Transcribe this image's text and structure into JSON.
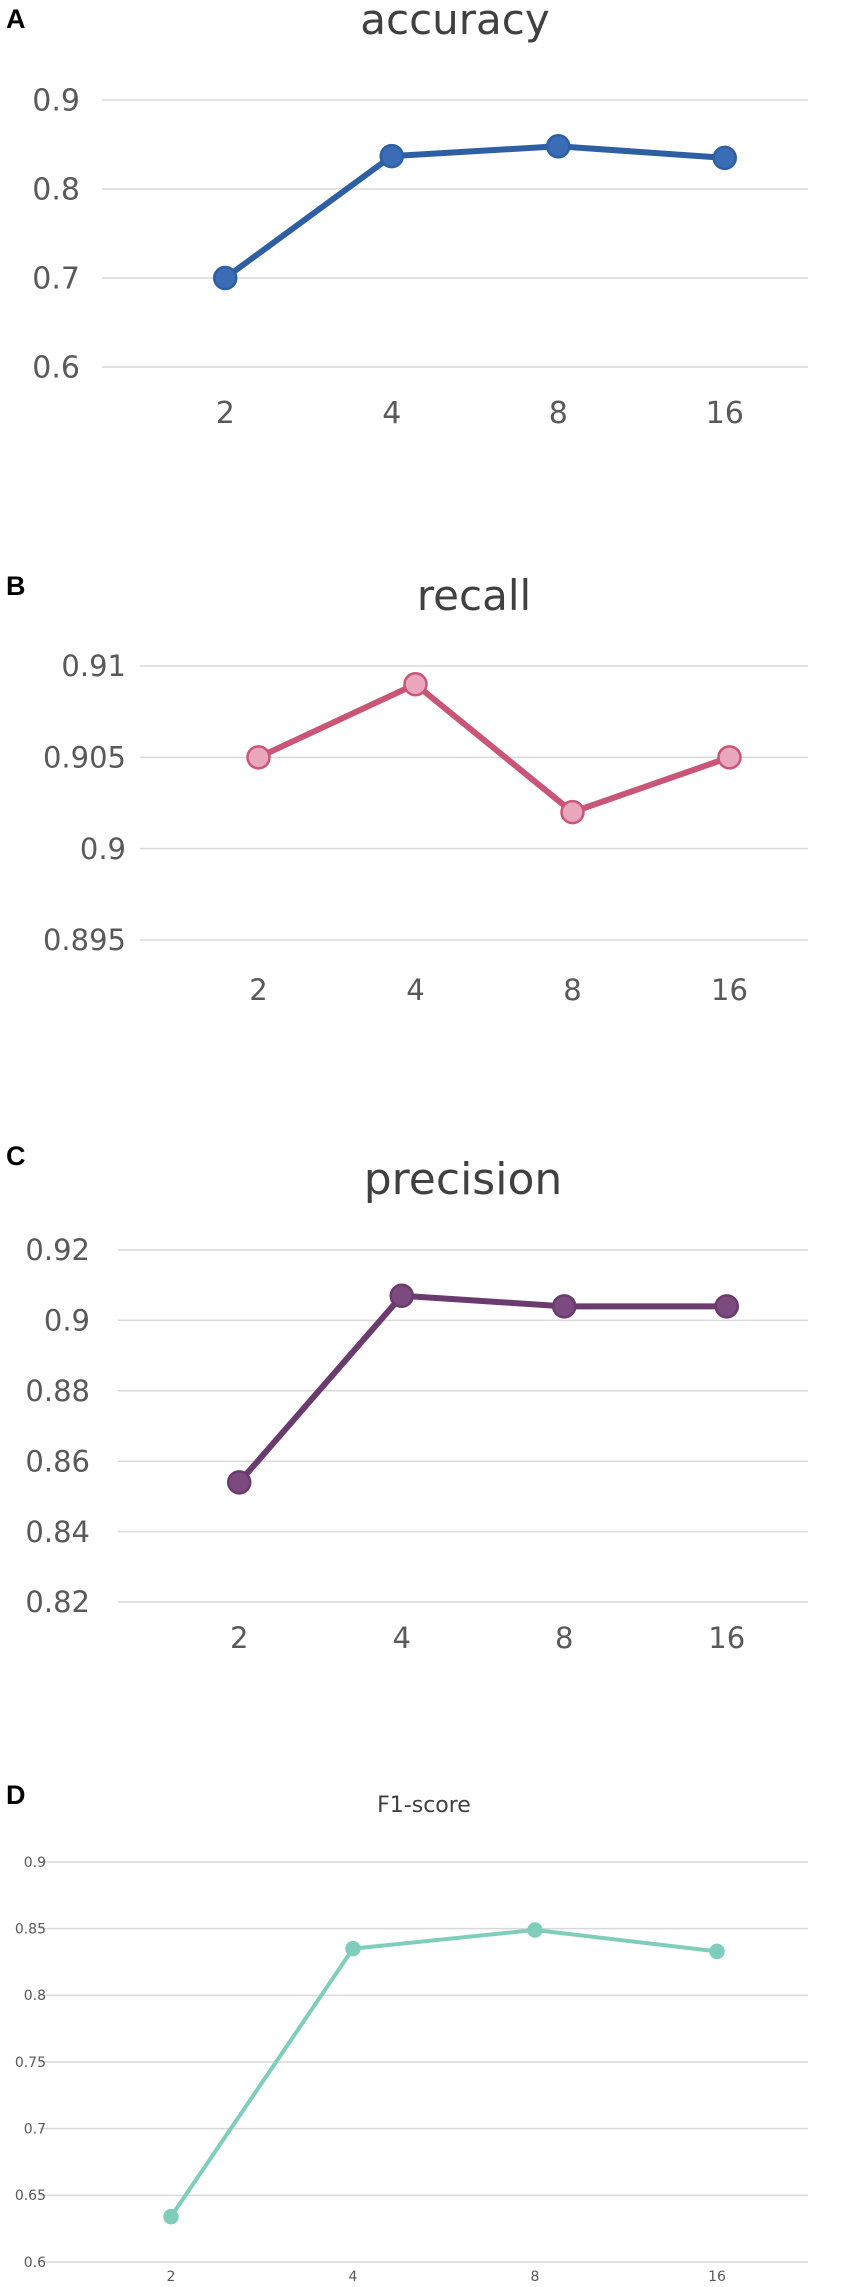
{
  "panels": [
    {
      "letter": "A"
    },
    {
      "letter": "B"
    },
    {
      "letter": "C"
    },
    {
      "letter": "D"
    }
  ],
  "chart_data": [
    {
      "type": "line",
      "title": "accuracy",
      "categories": [
        "2",
        "4",
        "8",
        "16"
      ],
      "yticks": [
        "0.6",
        "0.7",
        "0.8",
        "0.9"
      ],
      "ylim": [
        0.6,
        0.9
      ],
      "grid": true,
      "color": "#2e5fa3",
      "marker_fill": "#3a6db5",
      "series": [
        {
          "values": [
            0.7,
            0.837,
            0.848,
            0.835
          ]
        }
      ]
    },
    {
      "type": "line",
      "title": "recall",
      "categories": [
        "2",
        "4",
        "8",
        "16"
      ],
      "yticks": [
        "0.895",
        "0.9",
        "0.905",
        "0.91"
      ],
      "ylim": [
        0.895,
        0.91
      ],
      "grid": true,
      "color": "#c95577",
      "marker_fill": "#e9a6bc",
      "series": [
        {
          "values": [
            0.905,
            0.909,
            0.902,
            0.905
          ]
        }
      ]
    },
    {
      "type": "line",
      "title": "precision",
      "categories": [
        "2",
        "4",
        "8",
        "16"
      ],
      "yticks": [
        "0.82",
        "0.84",
        "0.86",
        "0.88",
        "0.9",
        "0.92"
      ],
      "ylim": [
        0.82,
        0.92
      ],
      "grid": true,
      "color": "#6b3a6e",
      "marker_fill": "#7b4a7e",
      "series": [
        {
          "values": [
            0.854,
            0.907,
            0.904,
            0.904
          ]
        }
      ]
    },
    {
      "type": "line",
      "title": "F1-score",
      "categories": [
        "2",
        "4",
        "8",
        "16"
      ],
      "yticks": [
        "0.6",
        "0.65",
        "0.7",
        "0.75",
        "0.8",
        "0.85",
        "0.9"
      ],
      "ylim": [
        0.6,
        0.9
      ],
      "grid": true,
      "color": "#7fcdbb",
      "marker_fill": "#7fcdbb",
      "series": [
        {
          "values": [
            0.634,
            0.835,
            0.849,
            0.833
          ]
        }
      ]
    }
  ]
}
